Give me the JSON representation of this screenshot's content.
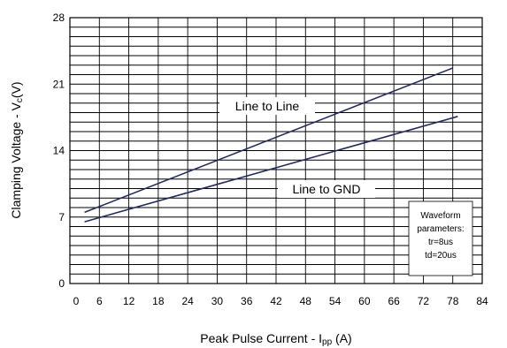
{
  "chart_data": {
    "type": "line",
    "xlabel_main": "Peak Pulse Current - I",
    "xlabel_sub": "pp",
    "xlabel_tail": " (A)",
    "ylabel_main": "Clamping Voltage - V",
    "ylabel_sub": "c",
    "ylabel_tail": "(V)",
    "xlim": [
      0,
      84
    ],
    "ylim": [
      0,
      28
    ],
    "xticks": [
      0,
      6,
      12,
      18,
      24,
      30,
      36,
      42,
      48,
      54,
      60,
      66,
      72,
      78,
      84
    ],
    "yticks": [
      0,
      7,
      14,
      21,
      28
    ],
    "minor_grid_step": 1,
    "grid": true,
    "series": [
      {
        "name": "Line to Line",
        "x": [
          3,
          78
        ],
        "y": [
          7.5,
          22.7
        ]
      },
      {
        "name": "Line to GND",
        "x": [
          3,
          79
        ],
        "y": [
          6.5,
          17.6
        ]
      }
    ],
    "note_lines": [
      "Waveform",
      "parameters:",
      "tr=8us",
      "td=20us"
    ],
    "line_color": "#1f2a66"
  }
}
